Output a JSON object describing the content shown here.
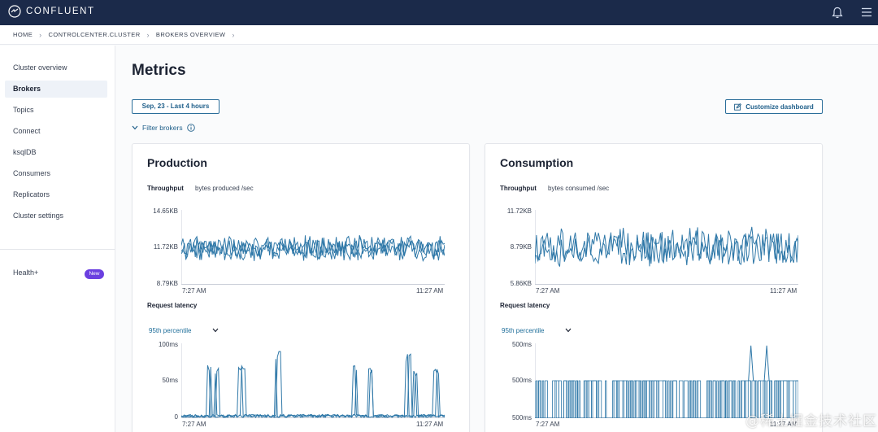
{
  "app": {
    "name": "CONFLUENT"
  },
  "breadcrumbs": [
    "HOME",
    "CONTROLCENTER.CLUSTER",
    "BROKERS OVERVIEW"
  ],
  "sidebar": {
    "items": [
      {
        "label": "Cluster overview",
        "active": false
      },
      {
        "label": "Brokers",
        "active": true
      },
      {
        "label": "Topics",
        "active": false
      },
      {
        "label": "Connect",
        "active": false
      },
      {
        "label": "ksqlDB",
        "active": false
      },
      {
        "label": "Consumers",
        "active": false
      },
      {
        "label": "Replicators",
        "active": false
      },
      {
        "label": "Cluster settings",
        "active": false
      }
    ],
    "health_label": "Health+",
    "health_badge": "New"
  },
  "page": {
    "title": "Metrics",
    "time_range": "Sep, 23 - Last 4 hours",
    "customize_label": "Customize dashboard",
    "filter_label": "Filter brokers"
  },
  "production": {
    "title": "Production",
    "throughput_label": "Throughput",
    "throughput_sub": "bytes produced /sec",
    "latency_label": "Request latency",
    "percentile": "95th percentile"
  },
  "consumption": {
    "title": "Consumption",
    "throughput_label": "Throughput",
    "throughput_sub": "bytes consumed /sec",
    "latency_label": "Request latency",
    "percentile": "95th percentile"
  },
  "colors": {
    "accent": "#1f6e9a",
    "line": "#2f78a8",
    "nav": "#1b2a4a",
    "badge": "#6b3fe0"
  },
  "icons": {
    "logo": "confluent-logo-icon",
    "bell": "bell-icon",
    "menu": "hamburger-menu-icon",
    "chevron": "chevron-down-icon",
    "info": "info-icon",
    "edit": "edit-icon"
  },
  "watermark": "@稀土掘金技术社区",
  "chart_data": [
    {
      "type": "line",
      "title": "",
      "y_ticks": [
        "14.65KB",
        "11.72KB",
        "8.79KB"
      ],
      "x_ticks": [
        "7:27 AM",
        "11:27 AM"
      ],
      "ylim": [
        8.79,
        14.65
      ],
      "y_unit": "KB",
      "series_count": 3,
      "approx_level": 11.6,
      "approx_band": [
        10.6,
        12.8
      ]
    },
    {
      "type": "line",
      "title": "",
      "y_ticks": [
        "100ms",
        "50ms",
        "0"
      ],
      "x_ticks": [
        "7:27 AM",
        "11:27 AM"
      ],
      "ylim": [
        0,
        100
      ],
      "y_unit": "ms",
      "series_count": 3,
      "spikes": [
        {
          "at": 0.1,
          "value": 72
        },
        {
          "at": 0.13,
          "value": 70
        },
        {
          "at": 0.22,
          "value": 70
        },
        {
          "at": 0.36,
          "value": 92
        },
        {
          "at": 0.65,
          "value": 70
        },
        {
          "at": 0.71,
          "value": 68
        },
        {
          "at": 0.85,
          "value": 88
        },
        {
          "at": 0.88,
          "value": 65
        },
        {
          "at": 0.96,
          "value": 68
        }
      ]
    },
    {
      "type": "line",
      "title": "",
      "y_ticks": [
        "11.72KB",
        "8.79KB",
        "5.86KB"
      ],
      "x_ticks": [
        "7:27 AM",
        "11:27 AM"
      ],
      "ylim": [
        5.86,
        11.72
      ],
      "y_unit": "KB",
      "series_count": 2,
      "approx_level": 8.8,
      "approx_band": [
        7.6,
        11.0
      ]
    },
    {
      "type": "line",
      "title": "",
      "y_ticks": [
        "500ms",
        "500ms",
        "500ms"
      ],
      "x_ticks": [
        "7:27 AM",
        "11:27 AM"
      ],
      "ylim": [
        0,
        100
      ],
      "series_count": 2,
      "approx_level": 50,
      "spikes": [
        {
          "at": 0.82,
          "value": 97
        },
        {
          "at": 0.88,
          "value": 97
        }
      ]
    }
  ]
}
